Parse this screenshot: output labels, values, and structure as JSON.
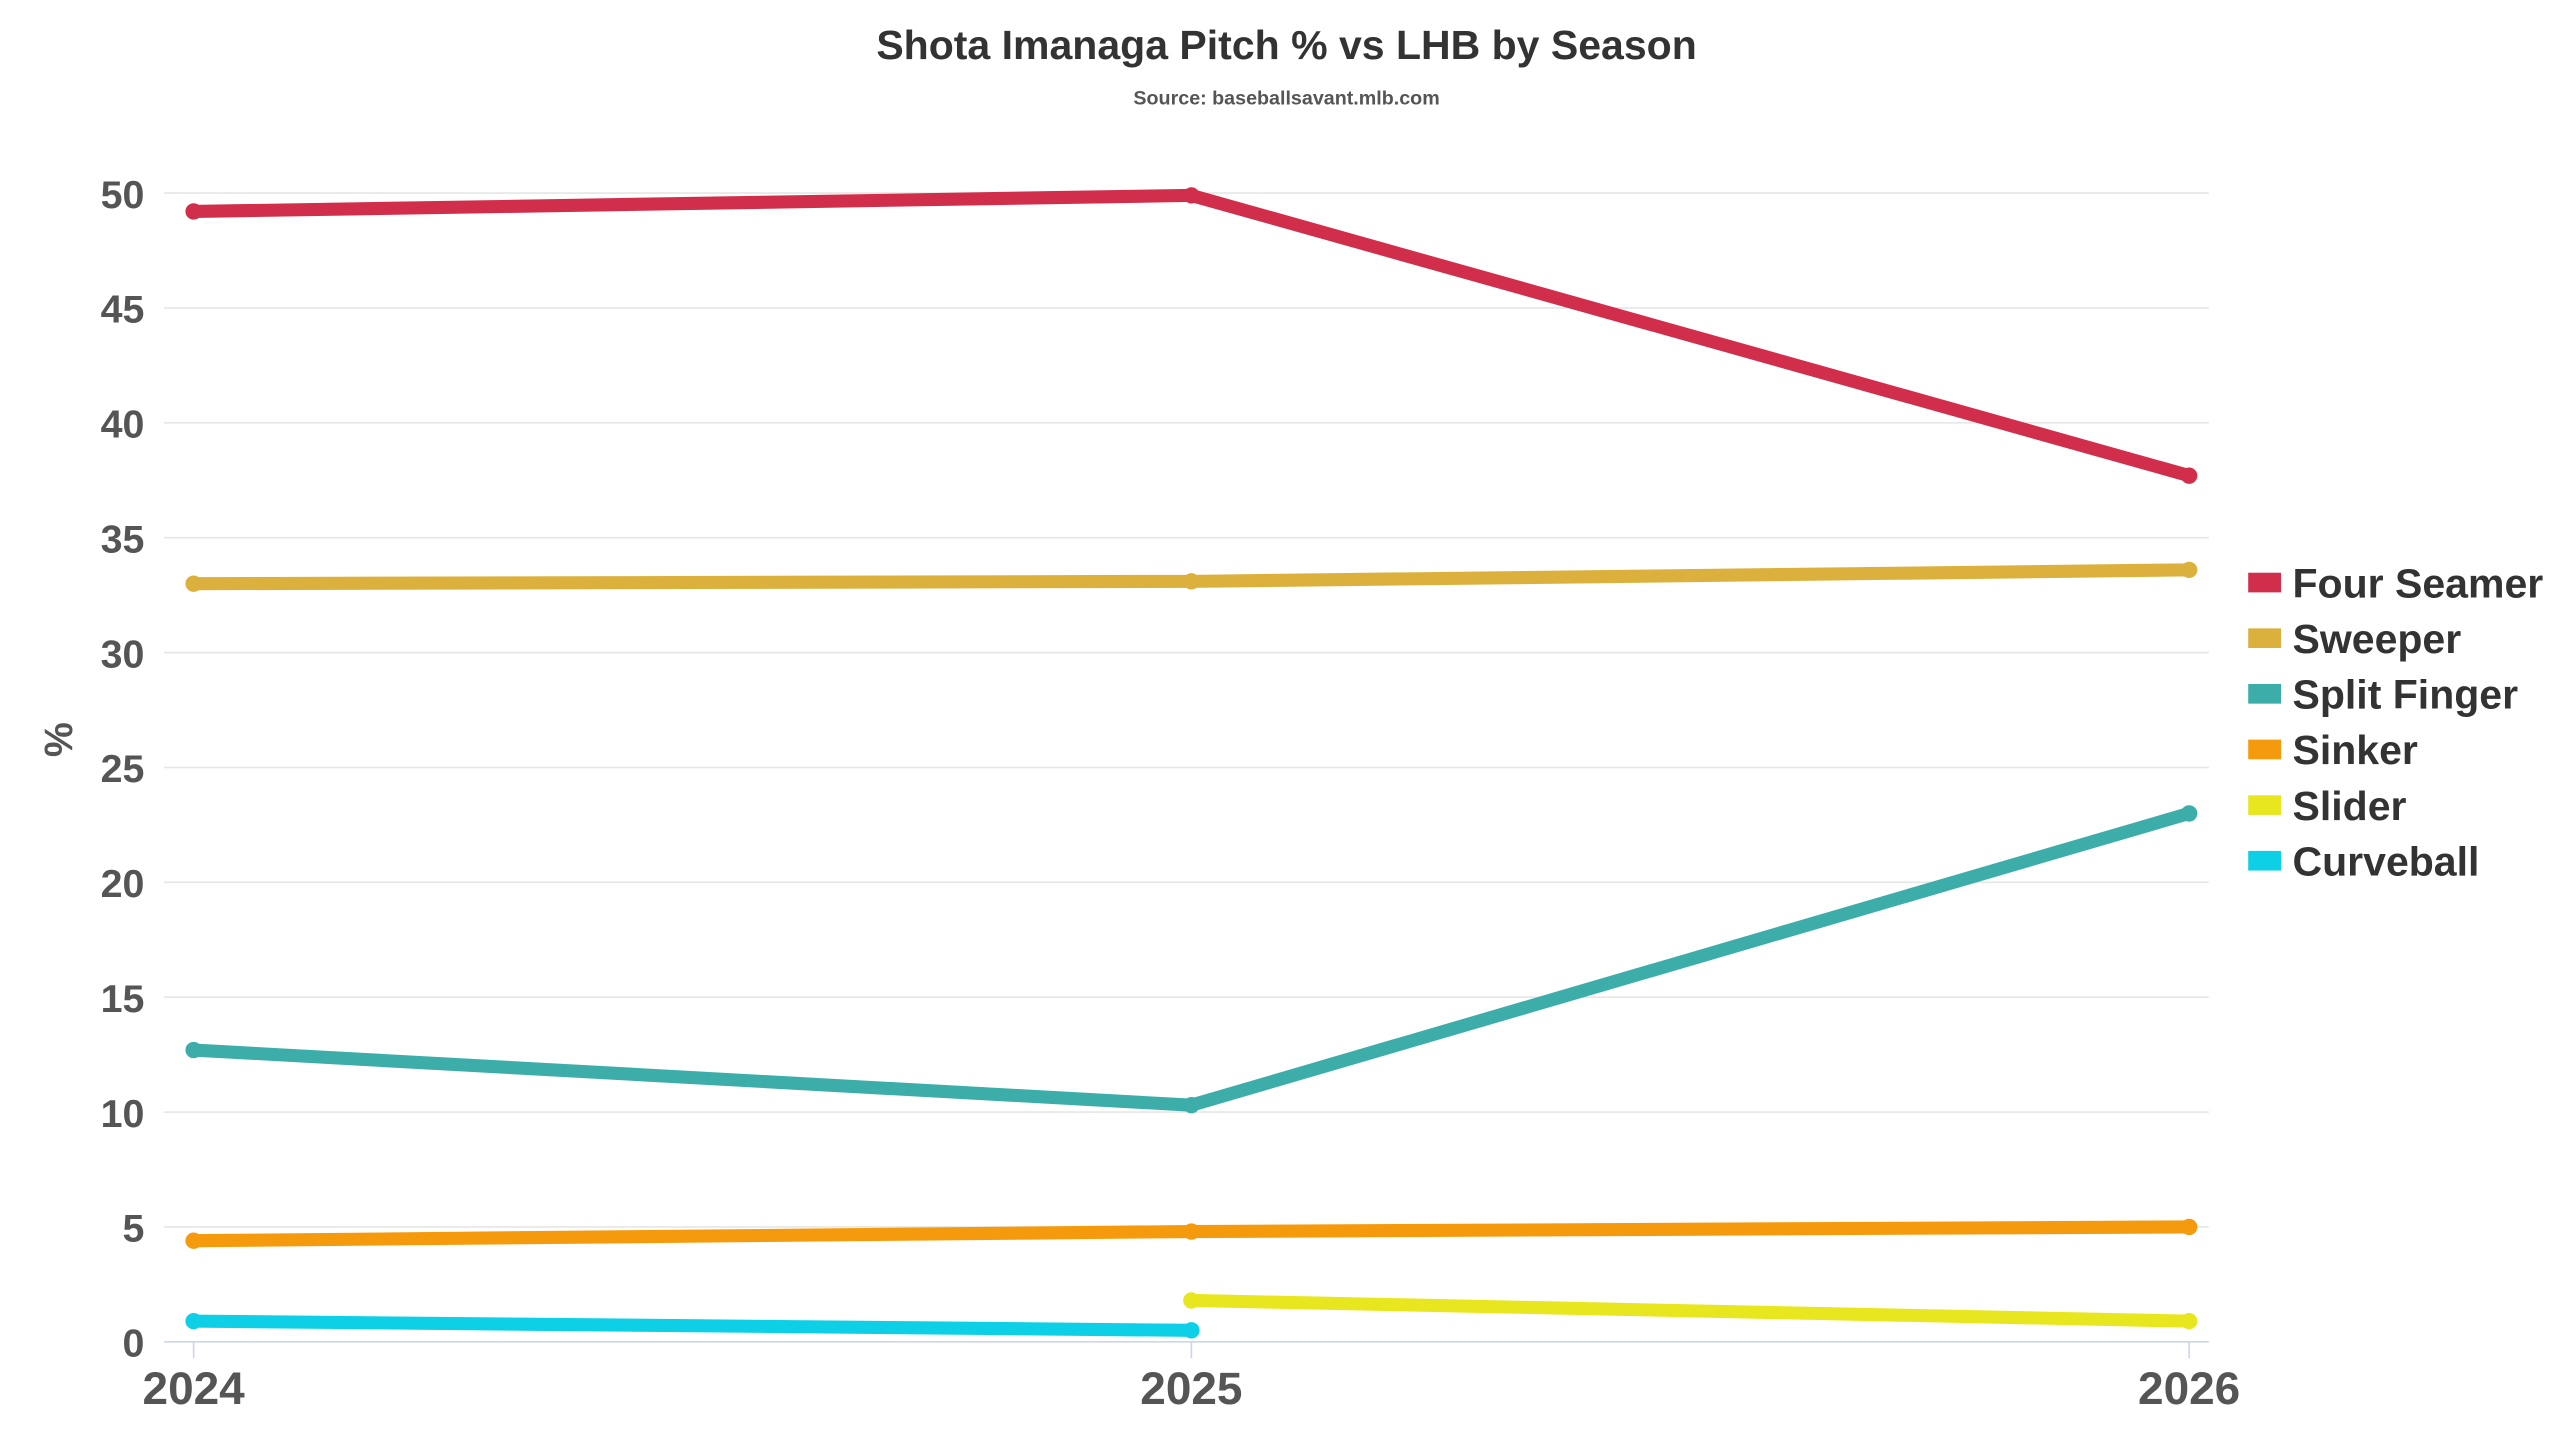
{
  "chart_data": {
    "type": "line",
    "title": "Shota Imanaga Pitch % vs LHB by Season",
    "subtitle": "Source: baseballsavant.mlb.com",
    "xlabel": "",
    "ylabel": "%",
    "x": [
      "2024",
      "2025",
      "2026"
    ],
    "ylim": [
      0,
      50
    ],
    "yticks": [
      "0",
      "5",
      "10",
      "15",
      "20",
      "25",
      "30",
      "35",
      "40",
      "45",
      "50"
    ],
    "grid": true,
    "legend_position": "right",
    "series": [
      {
        "name": "Four Seamer",
        "color": "#d12e4c",
        "values": [
          49.2,
          49.9,
          37.7
        ]
      },
      {
        "name": "Sweeper",
        "color": "#dbb03c",
        "values": [
          33.0,
          33.1,
          33.6
        ]
      },
      {
        "name": "Split Finger",
        "color": "#3cada9",
        "values": [
          12.7,
          10.3,
          23.0
        ]
      },
      {
        "name": "Sinker",
        "color": "#f59a0c",
        "values": [
          4.4,
          4.8,
          5.0
        ]
      },
      {
        "name": "Slider",
        "color": "#e8e61e",
        "values": [
          null,
          1.8,
          0.9
        ]
      },
      {
        "name": "Curveball",
        "color": "#0dcfe6",
        "values": [
          0.9,
          0.5,
          null
        ]
      }
    ]
  }
}
